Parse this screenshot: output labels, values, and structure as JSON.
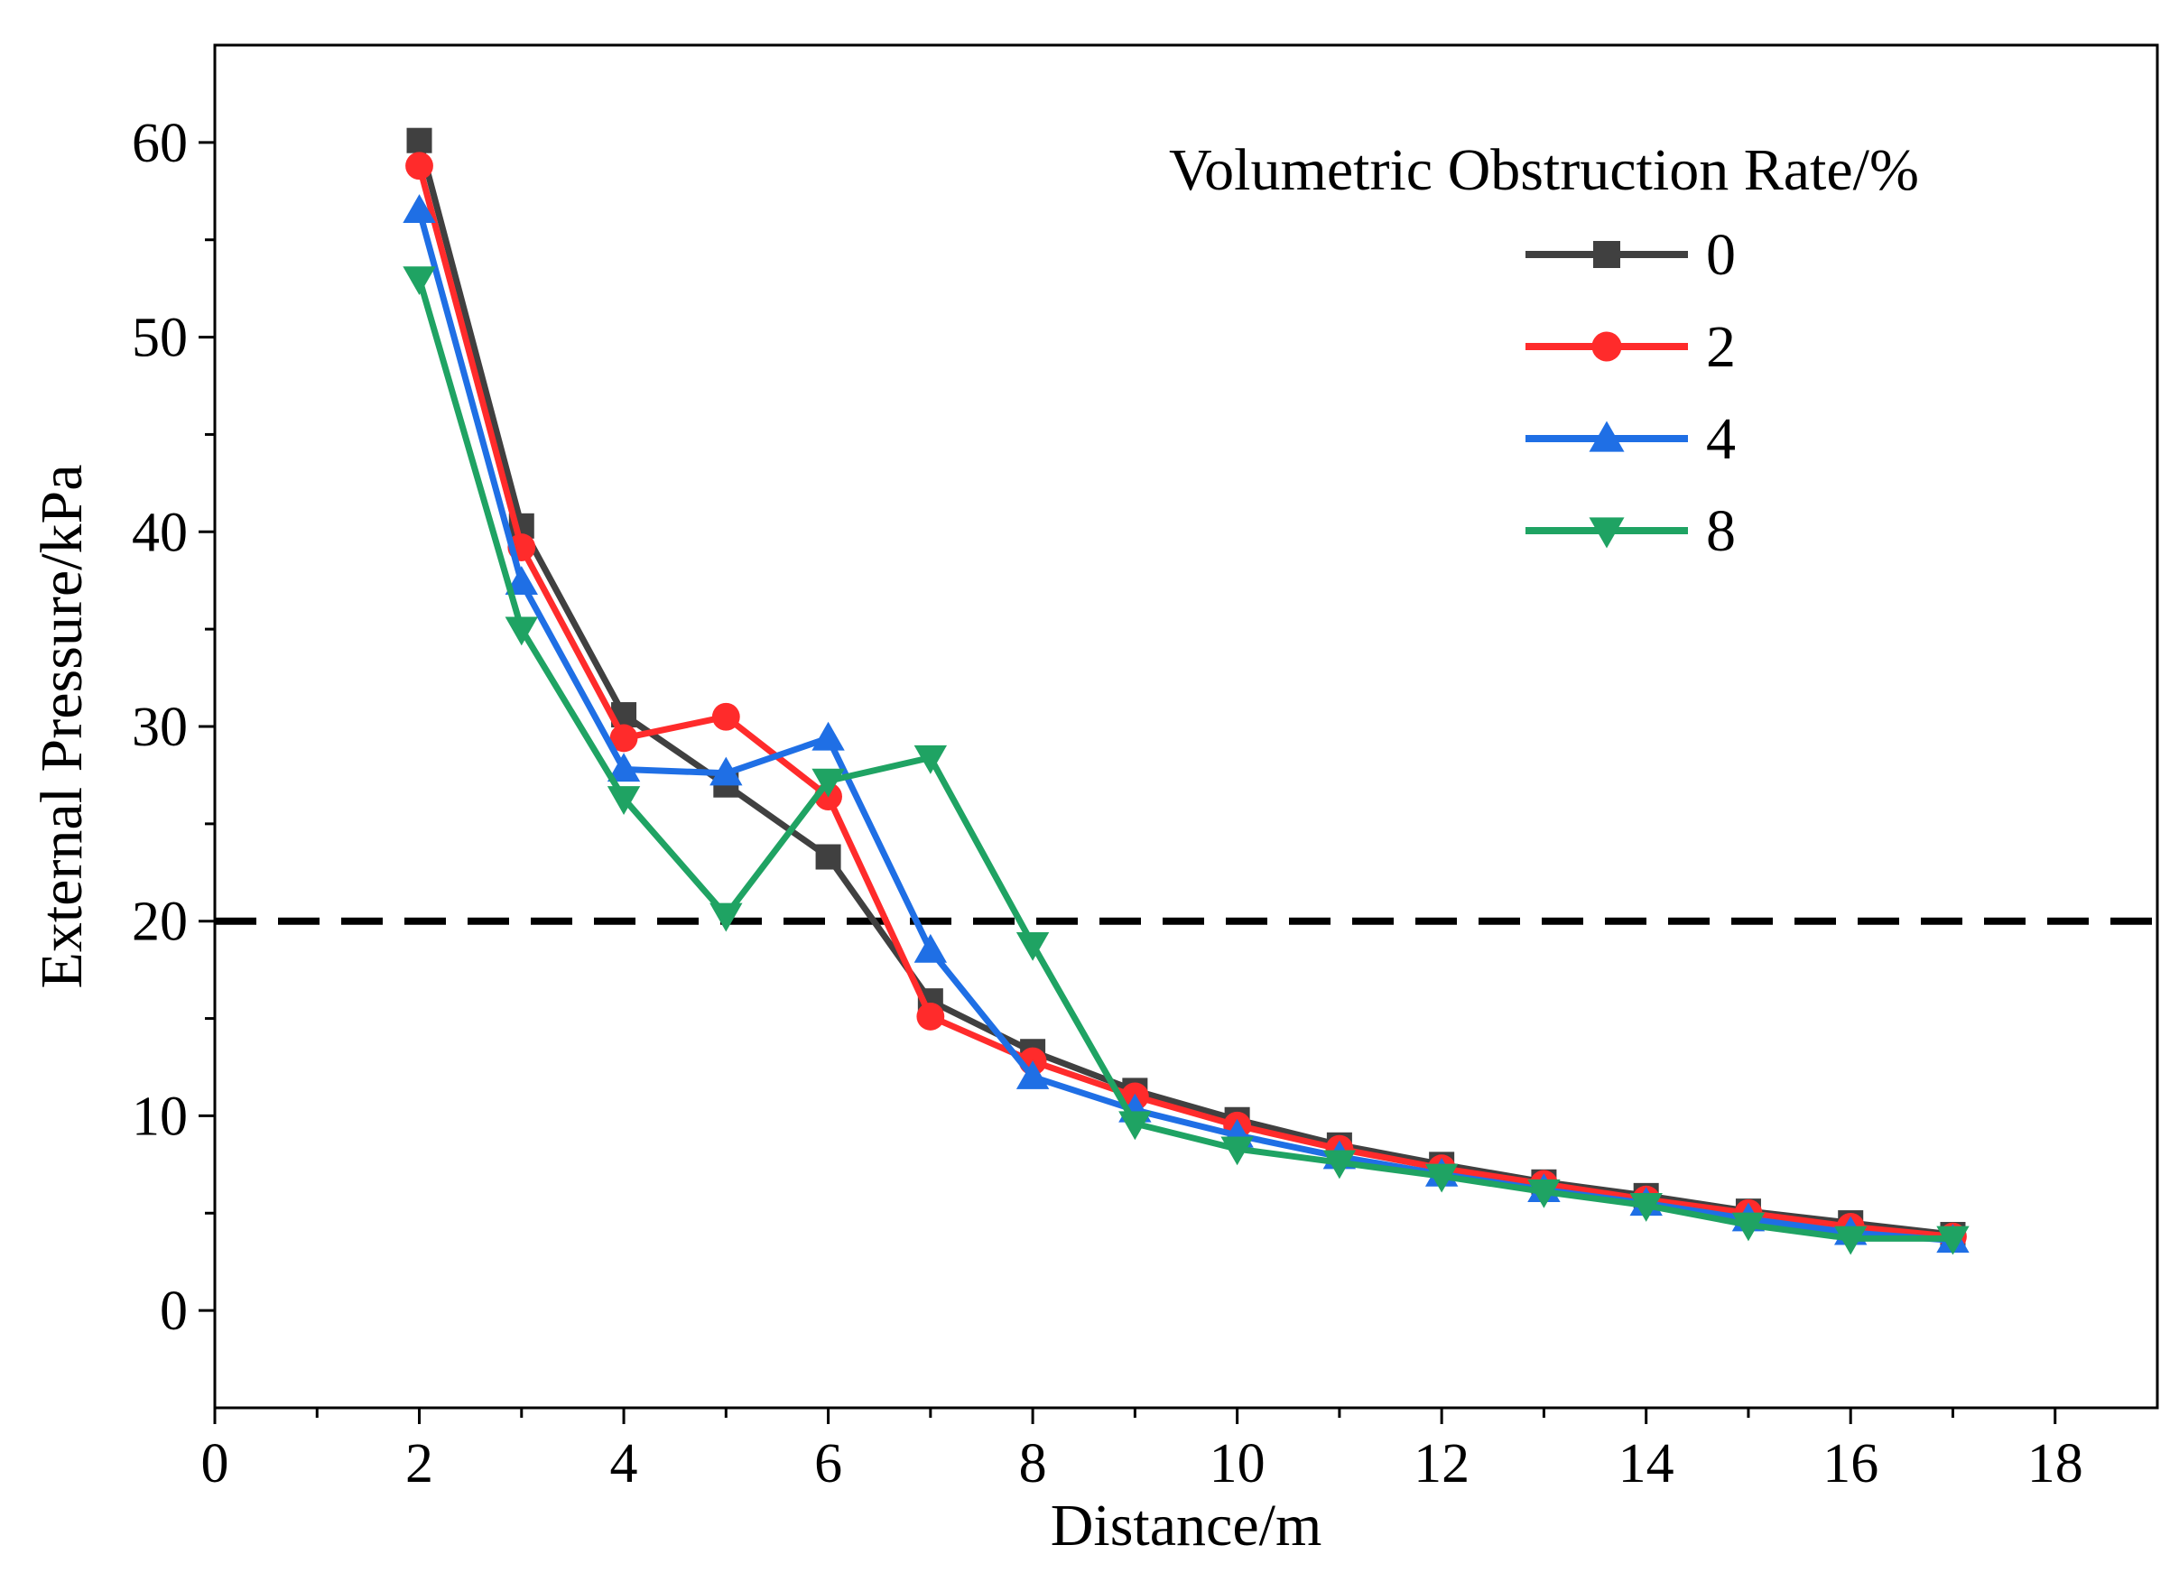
{
  "chart_data": {
    "type": "line",
    "title": "",
    "xlabel": "Distance/m",
    "ylabel": "External Pressure/kPa",
    "xlim": [
      0,
      19
    ],
    "ylim": [
      -5,
      65
    ],
    "xticks": [
      "0",
      "2",
      "4",
      "6",
      "8",
      "10",
      "12",
      "14",
      "16",
      "18"
    ],
    "yticks": [
      "0",
      "10",
      "20",
      "30",
      "40",
      "50",
      "60"
    ],
    "reference_line": {
      "y": 20,
      "style": "dashed",
      "color": "#000000"
    },
    "legend": {
      "title": "Volumetric Obstruction Rate/%",
      "position": "top-right"
    },
    "x": [
      2,
      3,
      4,
      5,
      6,
      7,
      8,
      9,
      10,
      11,
      12,
      13,
      14,
      15,
      16,
      17
    ],
    "series": [
      {
        "name": "0",
        "color": "#404040",
        "marker": "square",
        "values": [
          60.1,
          40.3,
          30.6,
          27.0,
          23.3,
          15.9,
          13.3,
          11.3,
          9.8,
          8.5,
          7.5,
          6.6,
          5.9,
          5.1,
          4.5,
          3.9
        ]
      },
      {
        "name": "2",
        "color": "#ff2b2b",
        "marker": "circle",
        "values": [
          58.8,
          39.2,
          29.4,
          30.5,
          26.4,
          15.1,
          12.8,
          11.0,
          9.5,
          8.3,
          7.3,
          6.5,
          5.7,
          5.0,
          4.3,
          3.8
        ]
      },
      {
        "name": "4",
        "color": "#1f6fe5",
        "marker": "triangle-up",
        "values": [
          56.5,
          37.4,
          27.8,
          27.6,
          29.4,
          18.5,
          12.0,
          10.3,
          9.0,
          7.9,
          7.0,
          6.2,
          5.5,
          4.7,
          4.0,
          3.6
        ]
      },
      {
        "name": "8",
        "color": "#1fa363",
        "marker": "triangle-down",
        "values": [
          53.0,
          35.0,
          26.3,
          20.3,
          27.2,
          28.4,
          18.8,
          9.6,
          8.3,
          7.6,
          6.9,
          6.1,
          5.4,
          4.4,
          3.7,
          3.7
        ]
      }
    ]
  }
}
